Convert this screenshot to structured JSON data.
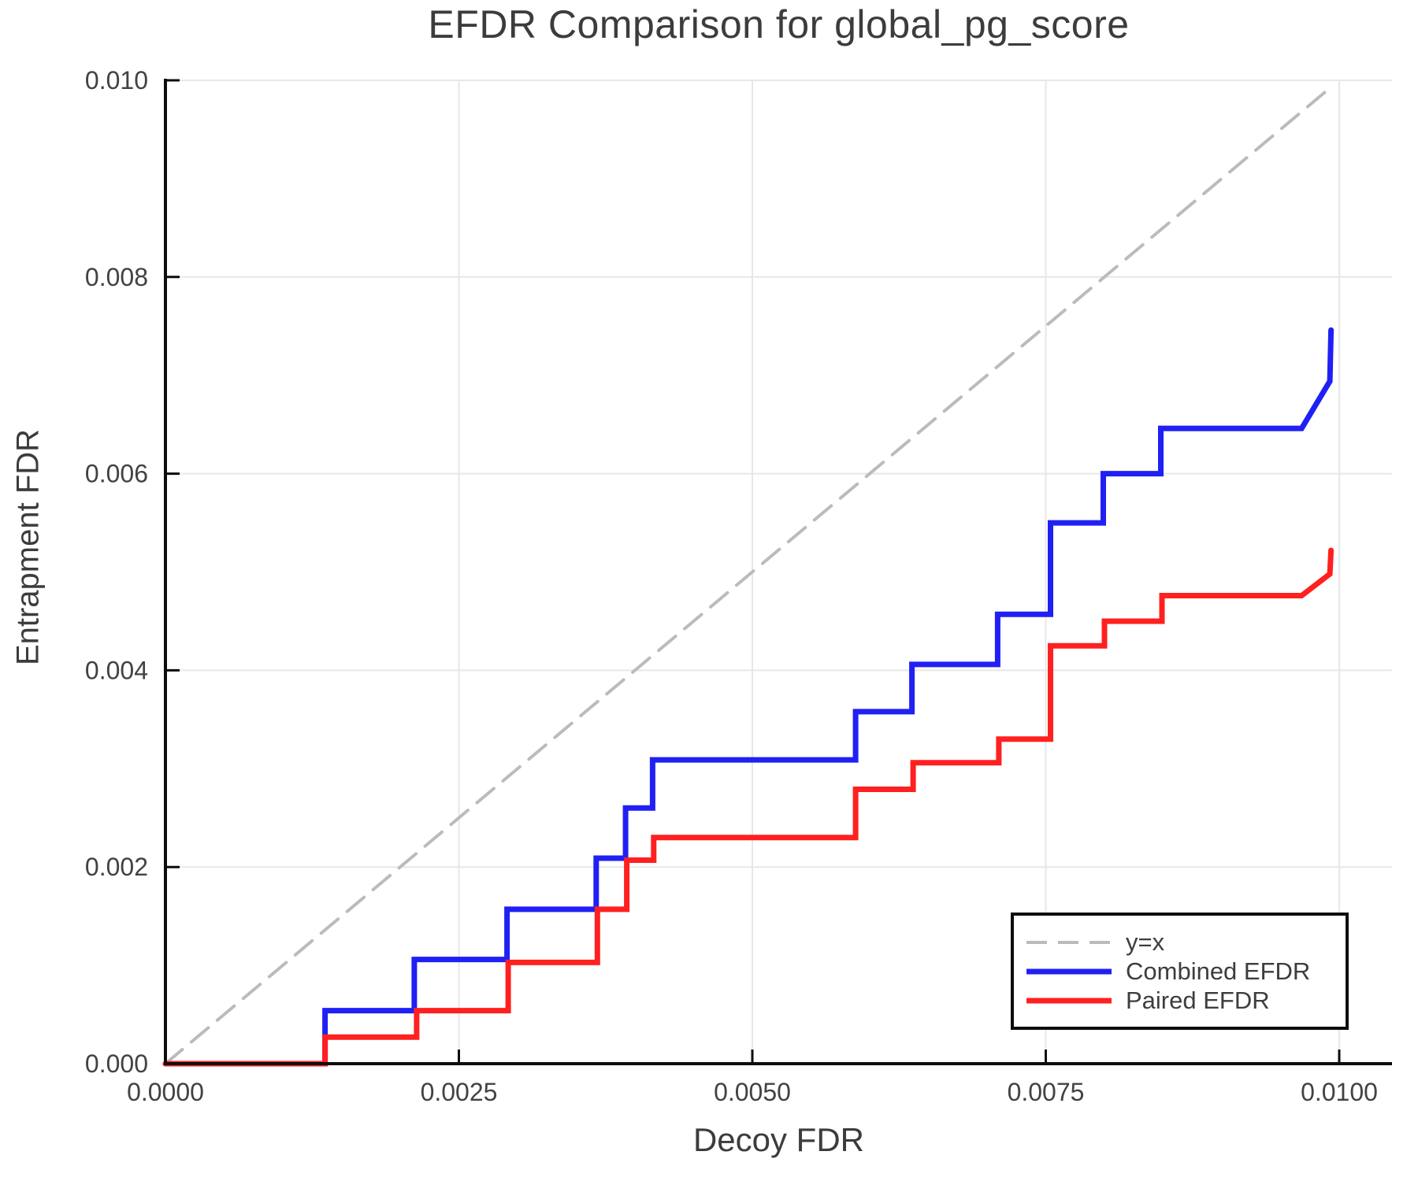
{
  "colors": {
    "background": "#ffffff",
    "grid": "#e7e7e7",
    "spine": "#0d0d0d",
    "title_text": "#3c3c3c",
    "tick_text": "#424242",
    "identity_line": "#bbbbbb",
    "combined_efdr": "#2020f5",
    "paired_efdr": "#ff2020"
  },
  "chart_data": {
    "type": "line",
    "title": "EFDR Comparison for global_pg_score",
    "xlabel": "Decoy FDR",
    "ylabel": "Entrapment FDR",
    "xlim": [
      0,
      0.01045
    ],
    "ylim": [
      0,
      0.01
    ],
    "grid": true,
    "legend_position": "lower right",
    "x_ticks": [
      {
        "v": 0.0,
        "label": "0.0000"
      },
      {
        "v": 0.0025,
        "label": "0.0025"
      },
      {
        "v": 0.005,
        "label": "0.0050"
      },
      {
        "v": 0.0075,
        "label": "0.0075"
      },
      {
        "v": 0.01,
        "label": "0.0100"
      }
    ],
    "y_ticks": [
      {
        "v": 0.0,
        "label": "0.000"
      },
      {
        "v": 0.002,
        "label": "0.002"
      },
      {
        "v": 0.004,
        "label": "0.004"
      },
      {
        "v": 0.006,
        "label": "0.006"
      },
      {
        "v": 0.008,
        "label": "0.008"
      },
      {
        "v": 0.01,
        "label": "0.010"
      }
    ],
    "series": [
      {
        "name": "y=x",
        "color": "#bbbbbb",
        "style": "dashed",
        "width": 4,
        "points": [
          [
            0,
            0
          ],
          [
            0.00995,
            0.00995
          ]
        ]
      },
      {
        "name": "Combined EFDR",
        "color": "#2020f5",
        "style": "solid",
        "width": 7,
        "points": [
          [
            0,
            0
          ],
          [
            0.00136,
            0
          ],
          [
            0.00136,
            0.00054
          ],
          [
            0.00212,
            0.00054
          ],
          [
            0.00212,
            0.00106
          ],
          [
            0.00291,
            0.00106
          ],
          [
            0.00291,
            0.00157
          ],
          [
            0.00367,
            0.00157
          ],
          [
            0.00367,
            0.00209
          ],
          [
            0.00392,
            0.00209
          ],
          [
            0.00392,
            0.0026
          ],
          [
            0.00415,
            0.0026
          ],
          [
            0.00415,
            0.00309
          ],
          [
            0.00588,
            0.00309
          ],
          [
            0.00588,
            0.00358
          ],
          [
            0.00636,
            0.00358
          ],
          [
            0.00636,
            0.00406
          ],
          [
            0.00709,
            0.00406
          ],
          [
            0.00709,
            0.00457
          ],
          [
            0.00754,
            0.00457
          ],
          [
            0.00754,
            0.0055
          ],
          [
            0.00799,
            0.0055
          ],
          [
            0.00799,
            0.006
          ],
          [
            0.00848,
            0.006
          ],
          [
            0.00848,
            0.00646
          ],
          [
            0.00968,
            0.00646
          ],
          [
            0.00992,
            0.00694
          ],
          [
            0.00993,
            0.00746
          ]
        ]
      },
      {
        "name": "Paired EFDR",
        "color": "#ff2020",
        "style": "solid",
        "width": 7,
        "points": [
          [
            0,
            0
          ],
          [
            0.00136,
            0
          ],
          [
            0.00136,
            0.00027
          ],
          [
            0.00214,
            0.00027
          ],
          [
            0.00214,
            0.00054
          ],
          [
            0.00292,
            0.00054
          ],
          [
            0.00292,
            0.00103
          ],
          [
            0.00368,
            0.00103
          ],
          [
            0.00368,
            0.00157
          ],
          [
            0.00393,
            0.00157
          ],
          [
            0.00393,
            0.00207
          ],
          [
            0.00416,
            0.00207
          ],
          [
            0.00416,
            0.0023
          ],
          [
            0.00588,
            0.0023
          ],
          [
            0.00588,
            0.00279
          ],
          [
            0.00637,
            0.00279
          ],
          [
            0.00637,
            0.00306
          ],
          [
            0.0071,
            0.00306
          ],
          [
            0.0071,
            0.0033
          ],
          [
            0.00754,
            0.0033
          ],
          [
            0.00754,
            0.00425
          ],
          [
            0.008,
            0.00425
          ],
          [
            0.008,
            0.0045
          ],
          [
            0.00849,
            0.0045
          ],
          [
            0.00849,
            0.00476
          ],
          [
            0.00968,
            0.00476
          ],
          [
            0.00992,
            0.00498
          ],
          [
            0.00993,
            0.00522
          ]
        ]
      }
    ]
  }
}
